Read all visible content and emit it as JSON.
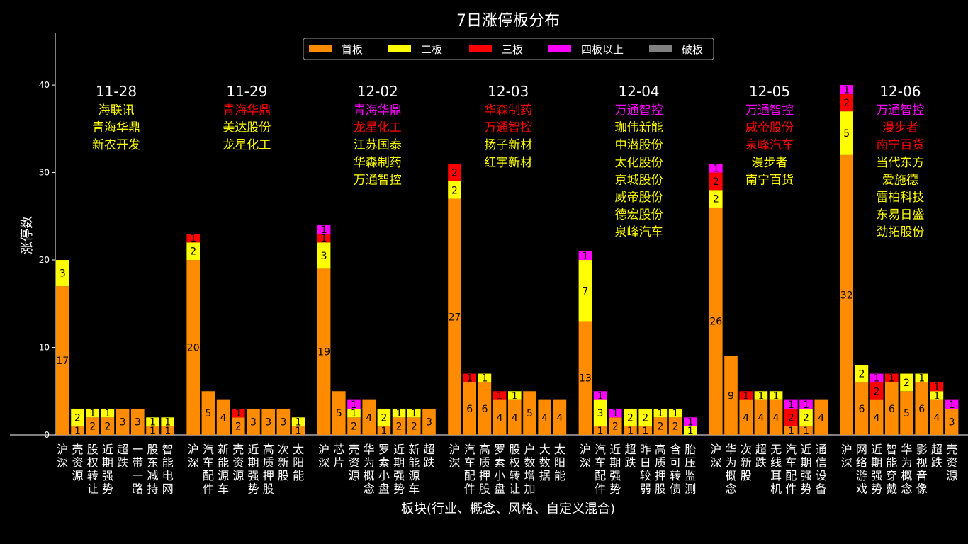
{
  "chart_data": {
    "type": "bar",
    "stacked": true,
    "title": "7日涨停板分布",
    "xlabel": "板块(行业、概念、风格、自定义混合)",
    "ylabel": "涨停数",
    "ylim": [
      0,
      46
    ],
    "yticks": [
      0,
      10,
      20,
      30,
      40
    ],
    "grid": false,
    "legend_position": "top-center",
    "series": [
      {
        "name": "首板",
        "color": "#ff8c00"
      },
      {
        "name": "二板",
        "color": "#ffff00"
      },
      {
        "name": "三板",
        "color": "#ff0000"
      },
      {
        "name": "四板以上",
        "color": "#ff00ff"
      },
      {
        "name": "破板",
        "color": "#808080"
      }
    ],
    "days": [
      {
        "date": "11-28",
        "stocks": [
          {
            "name": "海联讯",
            "color": "#ffff00"
          },
          {
            "name": "青海华鼎",
            "color": "#ffff00"
          },
          {
            "name": "新农开发",
            "color": "#ffff00"
          }
        ],
        "bars": [
          {
            "category": "沪深",
            "values": [
              17,
              3,
              0,
              0,
              0
            ]
          },
          {
            "category": "壳资源",
            "values": [
              1,
              2,
              0,
              0,
              0
            ]
          },
          {
            "category": "股权转让",
            "values": [
              2,
              1,
              0,
              0,
              0
            ]
          },
          {
            "category": "近期强势",
            "values": [
              2,
              1,
              0,
              0,
              0
            ]
          },
          {
            "category": "超跌",
            "values": [
              3,
              0,
              0,
              0,
              0
            ]
          },
          {
            "category": "一带一路",
            "values": [
              3,
              0,
              0,
              0,
              0
            ]
          },
          {
            "category": "股东减持",
            "values": [
              1,
              1,
              0,
              0,
              0
            ]
          },
          {
            "category": "智能电网",
            "values": [
              1,
              1,
              0,
              0,
              0
            ]
          }
        ]
      },
      {
        "date": "11-29",
        "stocks": [
          {
            "name": "青海华鼎",
            "color": "#ff0000"
          },
          {
            "name": "美达股份",
            "color": "#ffff00"
          },
          {
            "name": "龙星化工",
            "color": "#ffff00"
          }
        ],
        "bars": [
          {
            "category": "沪深",
            "values": [
              20,
              2,
              1,
              0,
              0
            ]
          },
          {
            "category": "汽车配件",
            "values": [
              5,
              0,
              0,
              0,
              0
            ]
          },
          {
            "category": "新能源车",
            "values": [
              4,
              0,
              0,
              0,
              0
            ]
          },
          {
            "category": "壳资源",
            "values": [
              2,
              0,
              1,
              0,
              0
            ]
          },
          {
            "category": "近期强势",
            "values": [
              3,
              0,
              0,
              0,
              0
            ]
          },
          {
            "category": "高质押股",
            "values": [
              3,
              0,
              0,
              0,
              0
            ]
          },
          {
            "category": "次新股",
            "values": [
              3,
              0,
              0,
              0,
              0
            ]
          },
          {
            "category": "太阳能",
            "values": [
              1,
              1,
              0,
              0,
              0
            ]
          }
        ]
      },
      {
        "date": "12-02",
        "stocks": [
          {
            "name": "青海华鼎",
            "color": "#ff00ff"
          },
          {
            "name": "龙星化工",
            "color": "#ff0000"
          },
          {
            "name": "江苏国泰",
            "color": "#ffff00"
          },
          {
            "name": "华森制药",
            "color": "#ffff00"
          },
          {
            "name": "万通智控",
            "color": "#ffff00"
          }
        ],
        "bars": [
          {
            "category": "沪深",
            "values": [
              19,
              3,
              1,
              1,
              0
            ]
          },
          {
            "category": "芯片",
            "values": [
              5,
              0,
              0,
              0,
              0
            ]
          },
          {
            "category": "壳资源",
            "values": [
              2,
              1,
              0,
              1,
              0
            ]
          },
          {
            "category": "华为概念",
            "values": [
              4,
              0,
              0,
              0,
              0
            ]
          },
          {
            "category": "罗素小盘",
            "values": [
              1,
              2,
              0,
              0,
              0
            ]
          },
          {
            "category": "近期强势",
            "values": [
              2,
              1,
              0,
              0,
              0
            ]
          },
          {
            "category": "新能源车",
            "values": [
              2,
              1,
              0,
              0,
              0
            ]
          },
          {
            "category": "超跌",
            "values": [
              3,
              0,
              0,
              0,
              0
            ]
          }
        ]
      },
      {
        "date": "12-03",
        "stocks": [
          {
            "name": "华森制药",
            "color": "#ff0000"
          },
          {
            "name": "万通智控",
            "color": "#ff0000"
          },
          {
            "name": "扬子新材",
            "color": "#ffff00"
          },
          {
            "name": "红宇新材",
            "color": "#ffff00"
          }
        ],
        "bars": [
          {
            "category": "沪深",
            "values": [
              27,
              2,
              2,
              0,
              0
            ]
          },
          {
            "category": "汽车配件",
            "values": [
              6,
              0,
              1,
              0,
              0
            ]
          },
          {
            "category": "高质押股",
            "values": [
              6,
              1,
              0,
              0,
              0
            ]
          },
          {
            "category": "罗素小盘",
            "values": [
              4,
              0,
              1,
              0,
              0
            ]
          },
          {
            "category": "股权转让",
            "values": [
              4,
              1,
              0,
              0,
              0
            ]
          },
          {
            "category": "户数增加",
            "values": [
              5,
              0,
              0,
              0,
              0
            ]
          },
          {
            "category": "大数据",
            "values": [
              4,
              0,
              0,
              0,
              0
            ]
          },
          {
            "category": "太阳能",
            "values": [
              4,
              0,
              0,
              0,
              0
            ]
          }
        ]
      },
      {
        "date": "12-04",
        "stocks": [
          {
            "name": "万通智控",
            "color": "#ff00ff"
          },
          {
            "name": "珈伟新能",
            "color": "#ffff00"
          },
          {
            "name": "中潜股份",
            "color": "#ffff00"
          },
          {
            "name": "太化股份",
            "color": "#ffff00"
          },
          {
            "name": "京城股份",
            "color": "#ffff00"
          },
          {
            "name": "威帝股份",
            "color": "#ffff00"
          },
          {
            "name": "德宏股份",
            "color": "#ffff00"
          },
          {
            "name": "泉峰汽车",
            "color": "#ffff00"
          }
        ],
        "bars": [
          {
            "category": "沪深",
            "values": [
              13,
              7,
              0,
              1,
              0
            ]
          },
          {
            "category": "汽车配件",
            "values": [
              1,
              3,
              0,
              1,
              0
            ]
          },
          {
            "category": "近期强势",
            "values": [
              2,
              0,
              0,
              1,
              0
            ]
          },
          {
            "category": "超跌",
            "values": [
              1,
              2,
              0,
              0,
              0
            ]
          },
          {
            "category": "昨日较弱",
            "values": [
              1,
              2,
              0,
              0,
              0
            ]
          },
          {
            "category": "高质押股",
            "values": [
              2,
              1,
              0,
              0,
              0
            ]
          },
          {
            "category": "含可转债",
            "values": [
              2,
              1,
              0,
              0,
              0
            ]
          },
          {
            "category": "胎压监测",
            "values": [
              0,
              1,
              0,
              1,
              0
            ]
          }
        ]
      },
      {
        "date": "12-05",
        "stocks": [
          {
            "name": "万通智控",
            "color": "#ff00ff"
          },
          {
            "name": "威帝股份",
            "color": "#ff0000"
          },
          {
            "name": "泉峰汽车",
            "color": "#ff0000"
          },
          {
            "name": "漫步者",
            "color": "#ffff00"
          },
          {
            "name": "南宁百货",
            "color": "#ffff00"
          }
        ],
        "bars": [
          {
            "category": "沪深",
            "values": [
              26,
              2,
              2,
              1,
              0
            ]
          },
          {
            "category": "华为概念",
            "values": [
              9,
              0,
              0,
              0,
              0
            ]
          },
          {
            "category": "次新股",
            "values": [
              4,
              0,
              1,
              0,
              0
            ]
          },
          {
            "category": "超跌",
            "values": [
              4,
              1,
              0,
              0,
              0
            ]
          },
          {
            "category": "无线耳机",
            "values": [
              4,
              1,
              0,
              0,
              0
            ]
          },
          {
            "category": "汽车配件",
            "values": [
              1,
              0,
              2,
              1,
              0
            ]
          },
          {
            "category": "近期强势",
            "values": [
              1,
              2,
              0,
              1,
              0
            ]
          },
          {
            "category": "通信设备",
            "values": [
              4,
              0,
              0,
              0,
              0
            ]
          }
        ]
      },
      {
        "date": "12-06",
        "stocks": [
          {
            "name": "万通智控",
            "color": "#ff00ff"
          },
          {
            "name": "漫步者",
            "color": "#ff0000"
          },
          {
            "name": "南宁百货",
            "color": "#ff0000"
          },
          {
            "name": "当代东方",
            "color": "#ffff00"
          },
          {
            "name": "爱施德",
            "color": "#ffff00"
          },
          {
            "name": "雷柏科技",
            "color": "#ffff00"
          },
          {
            "name": "东易日盛",
            "color": "#ffff00"
          },
          {
            "name": "劲拓股份",
            "color": "#ffff00"
          }
        ],
        "bars": [
          {
            "category": "沪深",
            "values": [
              32,
              5,
              2,
              1,
              0
            ]
          },
          {
            "category": "网络游戏",
            "values": [
              6,
              2,
              0,
              0,
              0
            ]
          },
          {
            "category": "近期强势",
            "values": [
              4,
              0,
              2,
              1,
              0
            ]
          },
          {
            "category": "智能穿戴",
            "values": [
              6,
              0,
              1,
              0,
              0
            ]
          },
          {
            "category": "华为概念",
            "values": [
              5,
              2,
              0,
              0,
              0
            ]
          },
          {
            "category": "影视音像",
            "values": [
              6,
              1,
              0,
              0,
              0
            ]
          },
          {
            "category": "超跌",
            "values": [
              4,
              1,
              1,
              0,
              0
            ]
          },
          {
            "category": "壳资源",
            "values": [
              3,
              0,
              0,
              1,
              0
            ]
          }
        ]
      }
    ]
  }
}
